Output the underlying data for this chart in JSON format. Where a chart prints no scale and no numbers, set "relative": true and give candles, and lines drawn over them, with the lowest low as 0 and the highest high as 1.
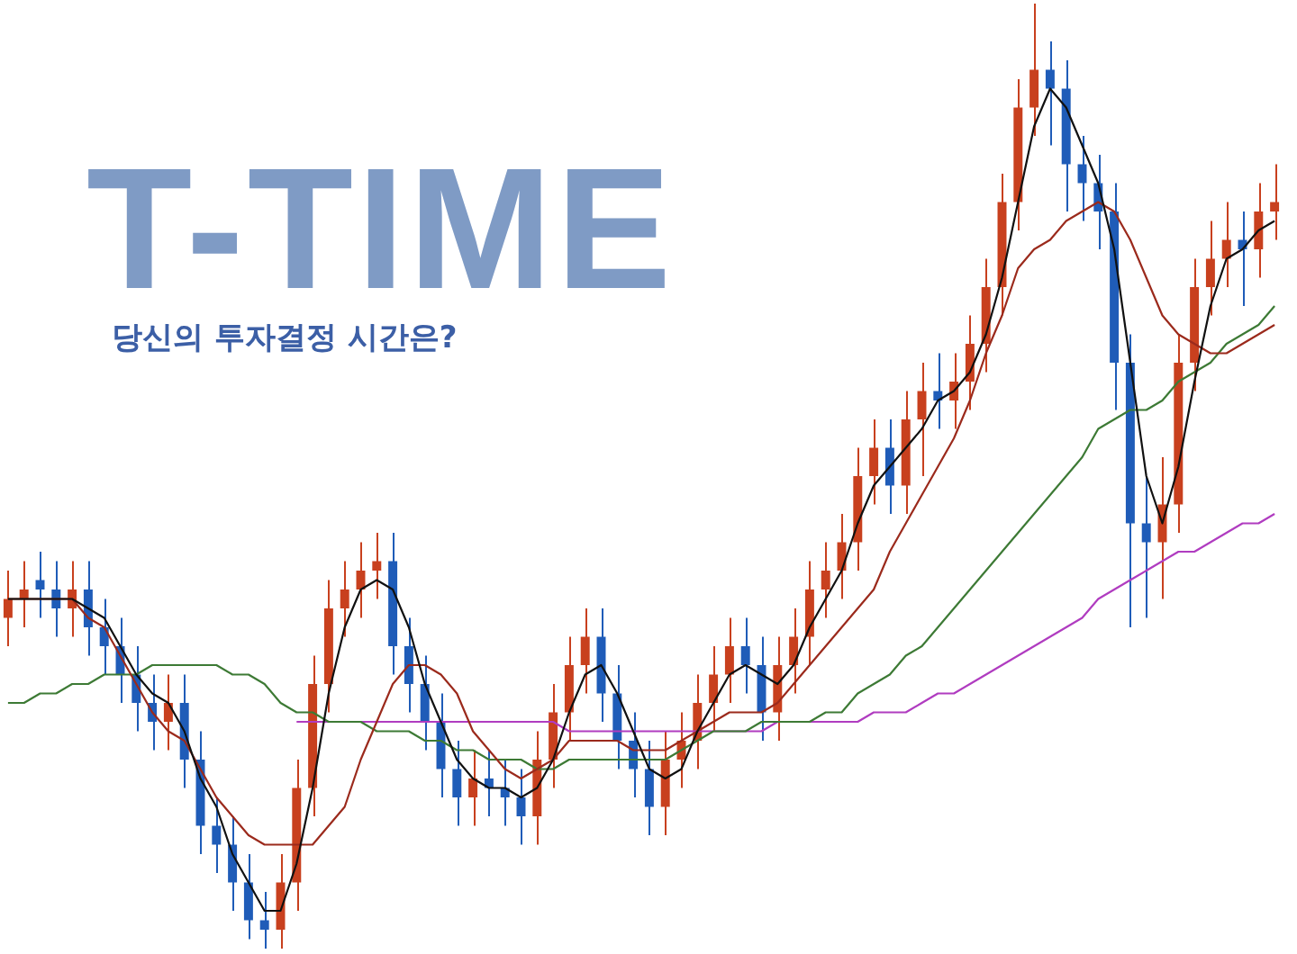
{
  "chart_data": {
    "type": "candlestick",
    "title": "T-TIME",
    "subtitle": "당신의 투자결정 시간은?",
    "relative": true,
    "legend": false,
    "tick_labels": false,
    "categories": [
      null,
      null,
      null,
      null,
      null,
      null,
      null,
      null,
      null,
      null,
      null,
      null,
      null,
      null,
      null,
      null,
      null,
      null,
      null,
      null,
      null,
      null,
      null,
      null,
      null,
      null,
      null,
      null,
      null,
      null,
      null,
      null,
      null,
      null,
      null,
      null,
      null,
      null,
      null,
      null,
      null,
      null,
      null,
      null,
      null,
      null,
      null,
      null,
      null,
      null,
      null,
      null,
      null,
      null,
      null,
      null,
      null,
      null,
      null,
      null,
      null,
      null,
      null,
      null,
      null,
      null,
      null,
      null,
      null,
      null,
      null,
      null,
      null,
      null,
      null,
      null,
      null,
      null,
      null,
      null
    ],
    "ohlc": [
      [
        0.35,
        0.4,
        0.32,
        0.37
      ],
      [
        0.37,
        0.41,
        0.34,
        0.38
      ],
      [
        0.39,
        0.42,
        0.35,
        0.38
      ],
      [
        0.38,
        0.41,
        0.33,
        0.36
      ],
      [
        0.36,
        0.41,
        0.33,
        0.38
      ],
      [
        0.38,
        0.41,
        0.31,
        0.34
      ],
      [
        0.34,
        0.37,
        0.29,
        0.32
      ],
      [
        0.32,
        0.35,
        0.26,
        0.29
      ],
      [
        0.29,
        0.32,
        0.23,
        0.26
      ],
      [
        0.26,
        0.29,
        0.21,
        0.24
      ],
      [
        0.24,
        0.29,
        0.21,
        0.26
      ],
      [
        0.26,
        0.29,
        0.17,
        0.2
      ],
      [
        0.2,
        0.23,
        0.1,
        0.13
      ],
      [
        0.13,
        0.16,
        0.08,
        0.11
      ],
      [
        0.11,
        0.14,
        0.04,
        0.07
      ],
      [
        0.07,
        0.1,
        0.01,
        0.03
      ],
      [
        0.03,
        0.06,
        0.0,
        0.02
      ],
      [
        0.02,
        0.1,
        0.0,
        0.07
      ],
      [
        0.07,
        0.2,
        0.04,
        0.17
      ],
      [
        0.17,
        0.31,
        0.14,
        0.28
      ],
      [
        0.28,
        0.39,
        0.25,
        0.36
      ],
      [
        0.36,
        0.41,
        0.33,
        0.38
      ],
      [
        0.38,
        0.43,
        0.35,
        0.4
      ],
      [
        0.4,
        0.44,
        0.37,
        0.41
      ],
      [
        0.41,
        0.44,
        0.29,
        0.32
      ],
      [
        0.32,
        0.35,
        0.25,
        0.28
      ],
      [
        0.28,
        0.31,
        0.21,
        0.24
      ],
      [
        0.24,
        0.27,
        0.16,
        0.19
      ],
      [
        0.19,
        0.22,
        0.13,
        0.16
      ],
      [
        0.16,
        0.21,
        0.13,
        0.18
      ],
      [
        0.18,
        0.21,
        0.14,
        0.17
      ],
      [
        0.17,
        0.2,
        0.13,
        0.16
      ],
      [
        0.16,
        0.19,
        0.11,
        0.14
      ],
      [
        0.14,
        0.23,
        0.11,
        0.2
      ],
      [
        0.2,
        0.28,
        0.17,
        0.25
      ],
      [
        0.25,
        0.33,
        0.22,
        0.3
      ],
      [
        0.3,
        0.36,
        0.27,
        0.33
      ],
      [
        0.33,
        0.36,
        0.24,
        0.27
      ],
      [
        0.27,
        0.3,
        0.19,
        0.22
      ],
      [
        0.22,
        0.25,
        0.16,
        0.19
      ],
      [
        0.19,
        0.22,
        0.12,
        0.15
      ],
      [
        0.15,
        0.23,
        0.12,
        0.2
      ],
      [
        0.2,
        0.25,
        0.17,
        0.22
      ],
      [
        0.22,
        0.29,
        0.19,
        0.26
      ],
      [
        0.26,
        0.32,
        0.23,
        0.29
      ],
      [
        0.29,
        0.35,
        0.26,
        0.32
      ],
      [
        0.32,
        0.35,
        0.27,
        0.3
      ],
      [
        0.3,
        0.33,
        0.22,
        0.25
      ],
      [
        0.25,
        0.33,
        0.22,
        0.3
      ],
      [
        0.3,
        0.36,
        0.27,
        0.33
      ],
      [
        0.33,
        0.41,
        0.3,
        0.38
      ],
      [
        0.38,
        0.43,
        0.35,
        0.4
      ],
      [
        0.4,
        0.46,
        0.37,
        0.43
      ],
      [
        0.43,
        0.53,
        0.4,
        0.5
      ],
      [
        0.5,
        0.56,
        0.47,
        0.53
      ],
      [
        0.53,
        0.56,
        0.46,
        0.49
      ],
      [
        0.49,
        0.59,
        0.46,
        0.56
      ],
      [
        0.56,
        0.62,
        0.5,
        0.59
      ],
      [
        0.59,
        0.63,
        0.55,
        0.58
      ],
      [
        0.58,
        0.63,
        0.55,
        0.6
      ],
      [
        0.6,
        0.67,
        0.57,
        0.64
      ],
      [
        0.64,
        0.73,
        0.61,
        0.7
      ],
      [
        0.7,
        0.82,
        0.67,
        0.79
      ],
      [
        0.79,
        0.92,
        0.76,
        0.89
      ],
      [
        0.89,
        1.0,
        0.86,
        0.93
      ],
      [
        0.93,
        0.96,
        0.85,
        0.91
      ],
      [
        0.91,
        0.94,
        0.78,
        0.83
      ],
      [
        0.83,
        0.86,
        0.77,
        0.81
      ],
      [
        0.81,
        0.84,
        0.74,
        0.78
      ],
      [
        0.78,
        0.81,
        0.57,
        0.62
      ],
      [
        0.62,
        0.65,
        0.34,
        0.45
      ],
      [
        0.45,
        0.5,
        0.35,
        0.43
      ],
      [
        0.43,
        0.52,
        0.37,
        0.47
      ],
      [
        0.47,
        0.65,
        0.44,
        0.62
      ],
      [
        0.62,
        0.73,
        0.59,
        0.7
      ],
      [
        0.7,
        0.77,
        0.67,
        0.73
      ],
      [
        0.73,
        0.79,
        0.7,
        0.75
      ],
      [
        0.75,
        0.78,
        0.68,
        0.74
      ],
      [
        0.74,
        0.81,
        0.71,
        0.78
      ],
      [
        0.78,
        0.83,
        0.75,
        0.79
      ]
    ],
    "colors": [
      "#c8401e",
      "#c8401e",
      "#1f5cb8",
      "#1f5cb8",
      "#c8401e",
      "#1f5cb8",
      "#1f5cb8",
      "#1f5cb8",
      "#1f5cb8",
      "#1f5cb8",
      "#c8401e",
      "#1f5cb8",
      "#1f5cb8",
      "#1f5cb8",
      "#1f5cb8",
      "#1f5cb8",
      "#1f5cb8",
      "#c8401e",
      "#c8401e",
      "#c8401e",
      "#c8401e",
      "#c8401e",
      "#c8401e",
      "#c8401e",
      "#1f5cb8",
      "#1f5cb8",
      "#1f5cb8",
      "#1f5cb8",
      "#1f5cb8",
      "#c8401e",
      "#1f5cb8",
      "#1f5cb8",
      "#1f5cb8",
      "#c8401e",
      "#c8401e",
      "#c8401e",
      "#c8401e",
      "#1f5cb8",
      "#1f5cb8",
      "#1f5cb8",
      "#1f5cb8",
      "#c8401e",
      "#c8401e",
      "#c8401e",
      "#c8401e",
      "#c8401e",
      "#1f5cb8",
      "#1f5cb8",
      "#c8401e",
      "#c8401e",
      "#c8401e",
      "#c8401e",
      "#c8401e",
      "#c8401e",
      "#c8401e",
      "#1f5cb8",
      "#c8401e",
      "#c8401e",
      "#1f5cb8",
      "#c8401e",
      "#c8401e",
      "#c8401e",
      "#c8401e",
      "#c8401e",
      "#c8401e",
      "#1f5cb8",
      "#1f5cb8",
      "#1f5cb8",
      "#1f5cb8",
      "#1f5cb8",
      "#1f5cb8",
      "#1f5cb8",
      "#c8401e",
      "#c8401e",
      "#c8401e",
      "#c8401e",
      "#c8401e",
      "#1f5cb8",
      "#c8401e",
      "#c8401e"
    ],
    "marker": "none",
    "line_style": "solid",
    "series": [
      {
        "type": "line",
        "color": "#111111",
        "values": [
          0.37,
          0.37,
          0.37,
          0.37,
          0.37,
          0.36,
          0.35,
          0.32,
          0.29,
          0.27,
          0.26,
          0.23,
          0.18,
          0.15,
          0.1,
          0.07,
          0.04,
          0.04,
          0.09,
          0.17,
          0.27,
          0.34,
          0.38,
          0.39,
          0.38,
          0.34,
          0.28,
          0.24,
          0.2,
          0.18,
          0.17,
          0.17,
          0.16,
          0.17,
          0.2,
          0.25,
          0.29,
          0.3,
          0.27,
          0.23,
          0.19,
          0.18,
          0.19,
          0.23,
          0.26,
          0.29,
          0.3,
          0.29,
          0.28,
          0.3,
          0.34,
          0.37,
          0.4,
          0.45,
          0.49,
          0.51,
          0.53,
          0.55,
          0.58,
          0.59,
          0.61,
          0.65,
          0.71,
          0.79,
          0.87,
          0.91,
          0.89,
          0.85,
          0.81,
          0.74,
          0.62,
          0.5,
          0.45,
          0.51,
          0.6,
          0.68,
          0.73,
          0.74,
          0.76,
          0.77
        ]
      },
      {
        "type": "line",
        "color": "#9b2a1c",
        "values": [
          0.37,
          0.37,
          0.37,
          0.37,
          0.37,
          0.35,
          0.34,
          0.31,
          0.28,
          0.25,
          0.23,
          0.22,
          0.19,
          0.16,
          0.14,
          0.12,
          0.11,
          0.11,
          0.11,
          0.11,
          0.13,
          0.15,
          0.2,
          0.24,
          0.28,
          0.3,
          0.3,
          0.29,
          0.27,
          0.23,
          0.21,
          0.19,
          0.18,
          0.19,
          0.2,
          0.22,
          0.22,
          0.22,
          0.22,
          0.21,
          0.21,
          0.21,
          0.22,
          0.23,
          0.24,
          0.25,
          0.25,
          0.25,
          0.26,
          0.28,
          0.3,
          0.32,
          0.34,
          0.36,
          0.38,
          0.42,
          0.45,
          0.48,
          0.51,
          0.54,
          0.58,
          0.63,
          0.67,
          0.72,
          0.74,
          0.75,
          0.77,
          0.78,
          0.79,
          0.78,
          0.75,
          0.71,
          0.67,
          0.65,
          0.64,
          0.63,
          0.63,
          0.64,
          0.65,
          0.66
        ]
      },
      {
        "type": "line",
        "color": "#3d7a35",
        "values": [
          0.26,
          0.26,
          0.27,
          0.27,
          0.28,
          0.28,
          0.29,
          0.29,
          0.29,
          0.3,
          0.3,
          0.3,
          0.3,
          0.3,
          0.29,
          0.29,
          0.28,
          0.26,
          0.25,
          0.25,
          0.24,
          0.24,
          0.24,
          0.23,
          0.23,
          0.23,
          0.22,
          0.22,
          0.21,
          0.21,
          0.2,
          0.2,
          0.2,
          0.19,
          0.19,
          0.2,
          0.2,
          0.2,
          0.2,
          0.2,
          0.2,
          0.2,
          0.21,
          0.22,
          0.23,
          0.23,
          0.23,
          0.24,
          0.24,
          0.24,
          0.24,
          0.25,
          0.25,
          0.27,
          0.28,
          0.29,
          0.31,
          0.32,
          0.34,
          0.36,
          0.38,
          0.4,
          0.42,
          0.44,
          0.46,
          0.48,
          0.5,
          0.52,
          0.55,
          0.56,
          0.57,
          0.57,
          0.58,
          0.6,
          0.61,
          0.62,
          0.64,
          0.65,
          0.66,
          0.68
        ]
      },
      {
        "type": "line",
        "color": "#b03cc0",
        "values": [
          null,
          null,
          null,
          null,
          null,
          null,
          null,
          null,
          null,
          null,
          null,
          null,
          null,
          null,
          null,
          null,
          null,
          null,
          0.24,
          0.24,
          0.24,
          0.24,
          0.24,
          0.24,
          0.24,
          0.24,
          0.24,
          0.24,
          0.24,
          0.24,
          0.24,
          0.24,
          0.24,
          0.24,
          0.24,
          0.23,
          0.23,
          0.23,
          0.23,
          0.23,
          0.23,
          0.23,
          0.23,
          0.23,
          0.23,
          0.23,
          0.23,
          0.23,
          0.24,
          0.24,
          0.24,
          0.24,
          0.24,
          0.24,
          0.25,
          0.25,
          0.25,
          0.26,
          0.27,
          0.27,
          0.28,
          0.29,
          0.3,
          0.31,
          0.32,
          0.33,
          0.34,
          0.35,
          0.37,
          0.38,
          0.39,
          0.4,
          0.41,
          0.42,
          0.42,
          0.43,
          0.44,
          0.45,
          0.45,
          0.46
        ]
      }
    ]
  }
}
